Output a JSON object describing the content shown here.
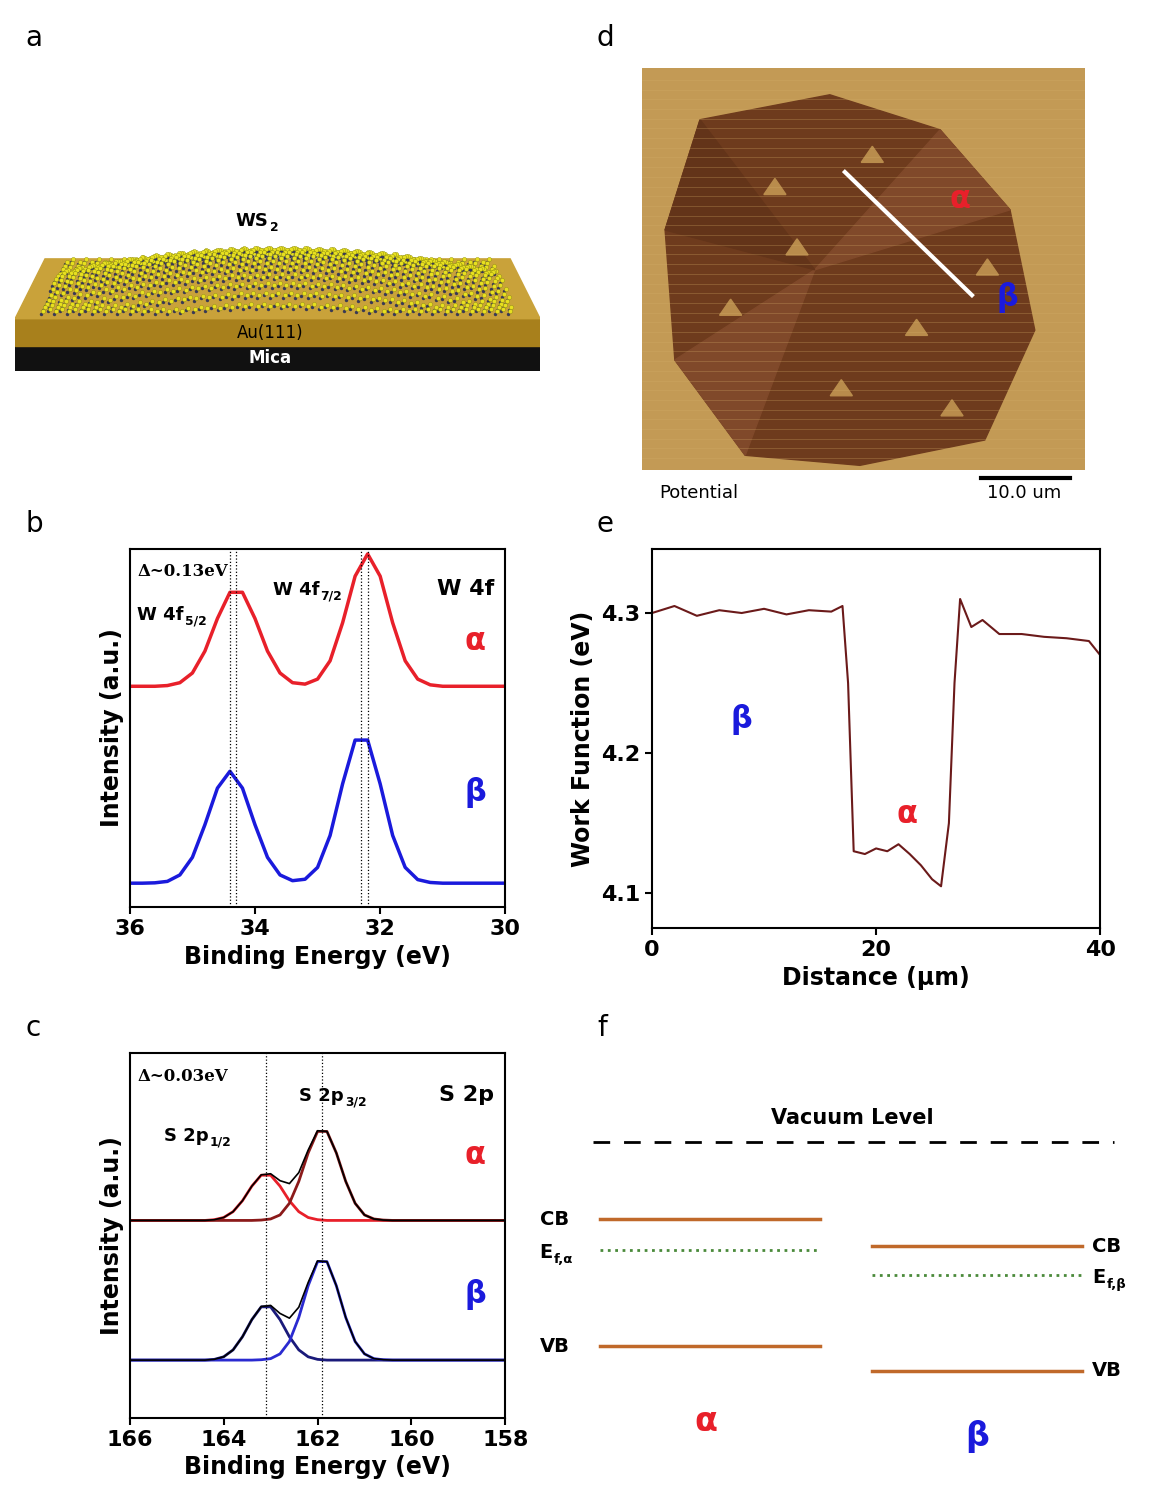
{
  "panel_labels": [
    "a",
    "b",
    "c",
    "d",
    "e",
    "f"
  ],
  "schematic": {
    "film": {
      "main": "WS",
      "sub": "2"
    },
    "substrate": "Au(111)",
    "support": "Mica"
  },
  "chart_data": [
    {
      "type": "line",
      "x_label": "Binding Energy (eV)",
      "y_label": "Intensity (a.u.)",
      "x": [
        36.0,
        35.8,
        35.6,
        35.4,
        35.2,
        35.0,
        34.8,
        34.6,
        34.4,
        34.2,
        34.0,
        33.8,
        33.6,
        33.4,
        33.2,
        33.0,
        32.8,
        32.6,
        32.4,
        32.2,
        32.0,
        31.8,
        31.6,
        31.4,
        31.2,
        31.0,
        30.8,
        30.6,
        30.4,
        30.2,
        30.0
      ],
      "series": [
        {
          "name": "α",
          "color": "#e8202a",
          "values": [
            0.616,
            0.616,
            0.616,
            0.618,
            0.626,
            0.653,
            0.714,
            0.805,
            0.878,
            0.878,
            0.805,
            0.714,
            0.653,
            0.626,
            0.622,
            0.636,
            0.687,
            0.793,
            0.923,
            0.985,
            0.923,
            0.793,
            0.687,
            0.636,
            0.62,
            0.616,
            0.616,
            0.616,
            0.616,
            0.616,
            0.616
          ]
        },
        {
          "name": "β",
          "color": "#1a1adc",
          "values": [
            0.067,
            0.067,
            0.068,
            0.072,
            0.09,
            0.139,
            0.23,
            0.332,
            0.379,
            0.332,
            0.23,
            0.139,
            0.09,
            0.074,
            0.078,
            0.111,
            0.2,
            0.344,
            0.466,
            0.466,
            0.344,
            0.2,
            0.111,
            0.077,
            0.069,
            0.067,
            0.067,
            0.067,
            0.067,
            0.067,
            0.067
          ]
        }
      ],
      "xlim": [
        36,
        30
      ],
      "xticks": [
        36,
        34,
        32,
        30
      ],
      "ylim": [
        0,
        1
      ],
      "tick_labels": "x",
      "reference_lines": [
        34.4,
        34.3,
        32.3,
        32.2
      ],
      "annotations": {
        "shift": "Δ~0.13eV",
        "peak_left": {
          "main": "W 4f",
          "sub": "5/2"
        },
        "peak_right": {
          "main": "W 4f",
          "sub": "7/2"
        },
        "core_level": "W 4f"
      }
    },
    {
      "type": "line",
      "x_label": "Binding Energy (eV)",
      "y_label": "Intensity (a.u.)",
      "x": [
        166.0,
        165.0,
        164.6,
        164.4,
        164.2,
        164.0,
        163.8,
        163.6,
        163.4,
        163.2,
        163.0,
        162.8,
        162.6,
        162.4,
        162.2,
        162.0,
        161.8,
        161.6,
        161.4,
        161.2,
        161.0,
        160.8,
        160.6,
        160.4,
        159.0,
        158.0
      ],
      "series": [
        {
          "name": "α",
          "color": "#e8202a",
          "values": [
            0.542,
            0.542,
            0.542,
            0.542,
            0.544,
            0.55,
            0.566,
            0.596,
            0.636,
            0.667,
            0.67,
            0.651,
            0.643,
            0.673,
            0.735,
            0.788,
            0.786,
            0.727,
            0.649,
            0.589,
            0.557,
            0.546,
            0.543,
            0.542,
            0.542,
            0.542
          ],
          "components": [
            {
              "color": "#e8202a",
              "values": [
                0.542,
                0.542,
                0.542,
                0.542,
                0.544,
                0.55,
                0.566,
                0.596,
                0.636,
                0.666,
                0.666,
                0.636,
                0.596,
                0.566,
                0.55,
                0.544,
                0.542,
                0.542,
                0.542,
                0.542,
                0.542,
                0.542,
                0.542,
                0.542,
                0.542,
                0.542
              ]
            },
            {
              "color": "#8b1a1a",
              "values": [
                0.542,
                0.542,
                0.542,
                0.542,
                0.542,
                0.542,
                0.542,
                0.542,
                0.542,
                0.543,
                0.546,
                0.557,
                0.589,
                0.649,
                0.727,
                0.786,
                0.786,
                0.727,
                0.649,
                0.589,
                0.557,
                0.546,
                0.543,
                0.542,
                0.542,
                0.542
              ]
            }
          ]
        },
        {
          "name": "β",
          "color": "#1a1adc",
          "values": [
            0.159,
            0.159,
            0.159,
            0.159,
            0.161,
            0.168,
            0.187,
            0.223,
            0.27,
            0.306,
            0.309,
            0.287,
            0.274,
            0.304,
            0.372,
            0.431,
            0.429,
            0.363,
            0.276,
            0.21,
            0.176,
            0.163,
            0.16,
            0.159,
            0.159,
            0.159
          ],
          "components": [
            {
              "color": "#1a1a7a",
              "values": [
                0.159,
                0.159,
                0.159,
                0.159,
                0.161,
                0.168,
                0.187,
                0.223,
                0.27,
                0.305,
                0.305,
                0.27,
                0.223,
                0.187,
                0.168,
                0.161,
                0.159,
                0.159,
                0.159,
                0.159,
                0.159,
                0.159,
                0.159,
                0.159,
                0.159,
                0.159
              ]
            },
            {
              "color": "#2a2ad0",
              "values": [
                0.159,
                0.159,
                0.159,
                0.159,
                0.159,
                0.159,
                0.159,
                0.159,
                0.159,
                0.16,
                0.163,
                0.176,
                0.21,
                0.276,
                0.363,
                0.429,
                0.429,
                0.363,
                0.276,
                0.21,
                0.176,
                0.163,
                0.16,
                0.159,
                0.159,
                0.159
              ]
            }
          ]
        }
      ],
      "xlim": [
        166,
        158
      ],
      "xticks": [
        166,
        164,
        162,
        160,
        158
      ],
      "ylim": [
        0,
        1
      ],
      "tick_labels": "x",
      "reference_lines": [
        163.1,
        161.9
      ],
      "annotations": {
        "shift": "Δ~0.03eV",
        "peak_left": {
          "main": "S 2p",
          "sub": "1/2"
        },
        "peak_right": {
          "main": "S 2p",
          "sub": "3/2"
        },
        "core_level": "S 2p"
      }
    },
    {
      "type": "line",
      "x_label": "Distance (μm)",
      "y_label": "Work Function (eV)",
      "x": [
        0,
        2,
        4,
        6,
        8,
        10,
        12,
        14,
        16,
        17,
        17.5,
        18,
        19,
        20,
        21,
        22,
        23,
        24,
        25,
        25.8,
        26.5,
        27,
        27.5,
        28.5,
        29.5,
        31,
        33,
        35,
        37,
        39,
        40
      ],
      "values": [
        4.3,
        4.305,
        4.298,
        4.302,
        4.3,
        4.303,
        4.299,
        4.302,
        4.301,
        4.305,
        4.25,
        4.13,
        4.128,
        4.132,
        4.13,
        4.135,
        4.128,
        4.12,
        4.11,
        4.105,
        4.15,
        4.25,
        4.31,
        4.29,
        4.295,
        4.285,
        4.285,
        4.283,
        4.282,
        4.28,
        4.27
      ],
      "color": "#6b1a1a",
      "region_labels": [
        {
          "text": "β",
          "color": "#1a1adc"
        },
        {
          "text": "α",
          "color": "#e8202a"
        }
      ],
      "xlim": [
        0,
        40
      ],
      "xticks": [
        0,
        20,
        40
      ],
      "ylim": [
        4.075,
        4.346
      ],
      "yticks": [
        4.1,
        4.2,
        4.3
      ]
    }
  ],
  "kpfm_image": {
    "channel": "Potential",
    "scale_bar": "10.0 um",
    "regions": [
      {
        "name": "α",
        "color": "#e8202a"
      },
      {
        "name": "β",
        "color": "#1a1adc"
      }
    ]
  },
  "band_diagram": {
    "vacuum_level": "Vacuum Level",
    "phases": [
      {
        "name": "α",
        "color": "#e8202a",
        "cb": "CB",
        "vb": "VB",
        "fermi": {
          "main": "E",
          "sub": "f,α"
        }
      },
      {
        "name": "β",
        "color": "#1a1adc",
        "cb": "CB",
        "vb": "VB",
        "fermi": {
          "main": "E",
          "sub": "f,β"
        }
      }
    ]
  }
}
